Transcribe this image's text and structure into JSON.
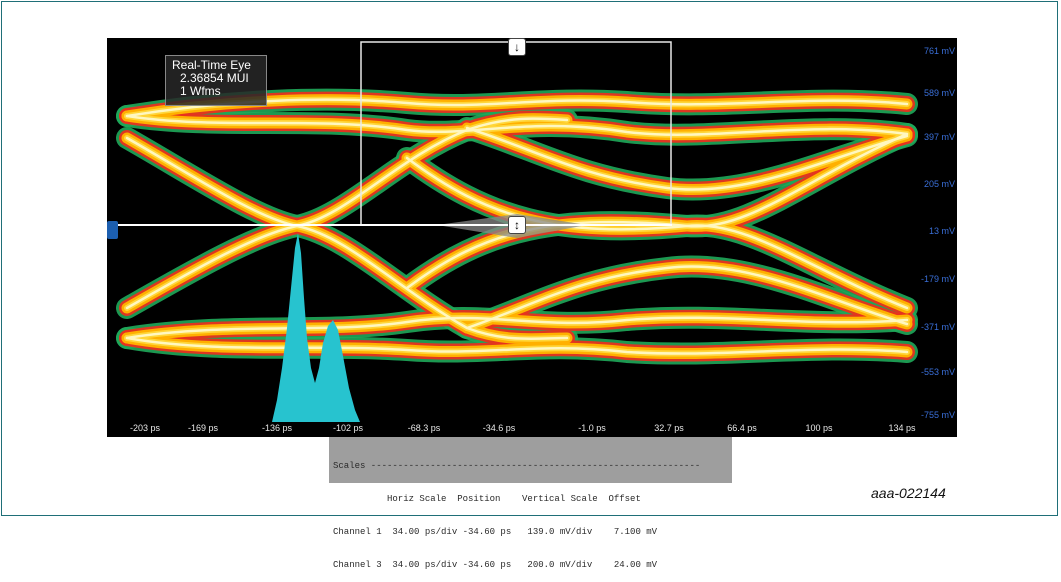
{
  "readout": {
    "title": "Real-Time Eye",
    "ui_value": "2.36854 MUI",
    "wfms": "1 Wfms"
  },
  "y_labels": [
    "761 mV",
    "589 mV",
    "397 mV",
    "205 mV",
    "13 mV",
    "-179 mV",
    "-371 mV",
    "-553 mV",
    "-755 mV"
  ],
  "x_labels": [
    "-203 ps",
    "-169 ps",
    "-136 ps",
    "-102 ps",
    "-68.3 ps",
    "-34.6 ps",
    "-1.0 ps",
    "32.7 ps",
    "66.4 ps",
    "100 ps",
    "134 ps"
  ],
  "handles": {
    "top": "↓",
    "middle": "↕"
  },
  "scales": {
    "header": "Scales -------------------------------------------------------------",
    "columns": "          Horiz Scale  Position    Vertical Scale  Offset",
    "rows": [
      "Channel 1  34.00 ps/div -34.60 ps   139.0 mV/div    7.100 mV",
      "Channel 3  34.00 ps/div -34.60 ps   200.0 mV/div    24.00 mV"
    ]
  },
  "caption": "aaa-022144",
  "colors": {
    "background": "#000000",
    "axis_text": "#3a6fd8",
    "histogram": "#27c3cf",
    "eye_hot": "#fff7c0",
    "eye_warm": "#ffb000",
    "eye_mid": "#e8311f",
    "eye_edge": "#1fa85a"
  }
}
